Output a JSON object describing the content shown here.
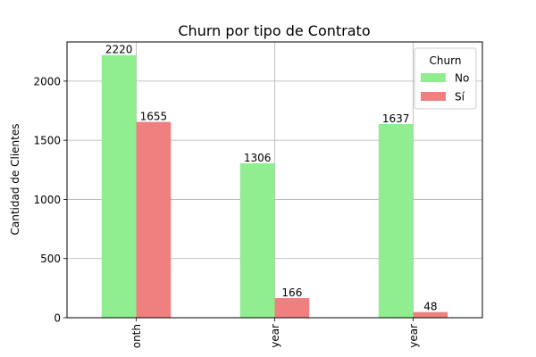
{
  "chart_data": {
    "type": "bar",
    "title": "Churn por tipo de Contrato",
    "xlabel": "",
    "ylabel": "Cantidad de Clientes",
    "categories": [
      "onth",
      "year",
      "year"
    ],
    "series": [
      {
        "name": "No",
        "values": [
          2220,
          1306,
          1637
        ],
        "color": "#90ee90"
      },
      {
        "name": "Sí",
        "values": [
          1655,
          166,
          48
        ],
        "color": "#f08080"
      }
    ],
    "ylim": [
      0,
      2331
    ],
    "yticks": [
      0,
      500,
      1000,
      1500,
      2000
    ],
    "grid": true,
    "legend": {
      "title": "Churn",
      "placement": "top-right"
    }
  }
}
